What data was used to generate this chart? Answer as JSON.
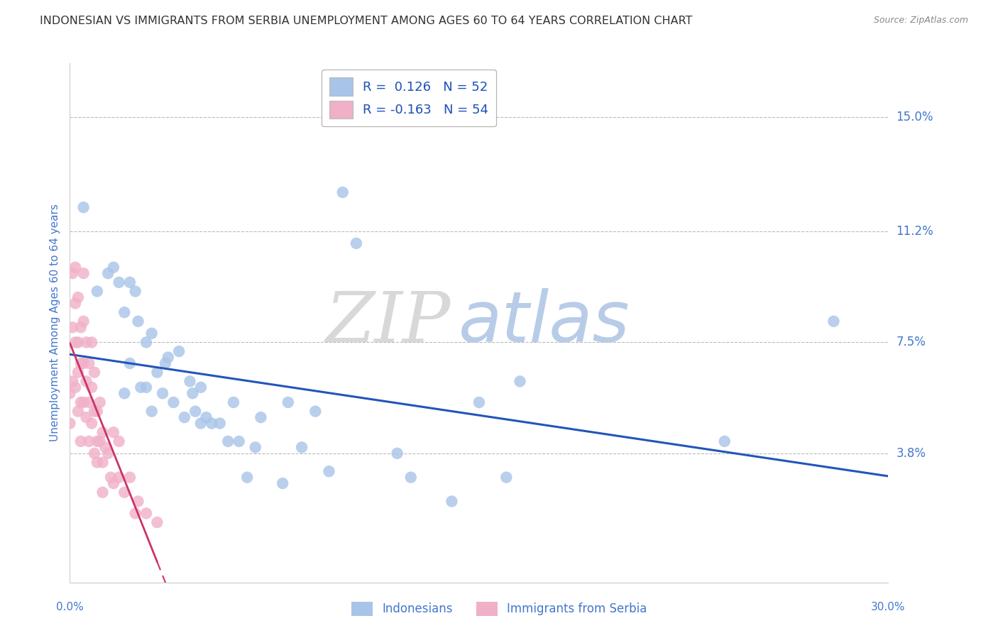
{
  "title": "INDONESIAN VS IMMIGRANTS FROM SERBIA UNEMPLOYMENT AMONG AGES 60 TO 64 YEARS CORRELATION CHART",
  "source": "Source: ZipAtlas.com",
  "ylabel": "Unemployment Among Ages 60 to 64 years",
  "ytick_values": [
    0.038,
    0.075,
    0.112,
    0.15
  ],
  "ytick_labels": [
    "3.8%",
    "7.5%",
    "11.2%",
    "15.0%"
  ],
  "xlim": [
    0.0,
    0.3
  ],
  "ylim": [
    -0.005,
    0.168
  ],
  "r_indonesian": 0.126,
  "n_indonesian": 52,
  "r_serbian": -0.163,
  "n_serbian": 54,
  "color_indonesian": "#a8c4e8",
  "color_serbian": "#f0b0c8",
  "line_color_indonesian": "#2255bb",
  "line_color_serbian": "#cc3366",
  "watermark_ZIP": "ZIP",
  "watermark_atlas": "atlas",
  "watermark_ZIP_color": "#d8d8d8",
  "watermark_atlas_color": "#b8cce8",
  "indonesian_x": [
    0.005,
    0.01,
    0.014,
    0.016,
    0.018,
    0.02,
    0.02,
    0.022,
    0.022,
    0.024,
    0.025,
    0.026,
    0.028,
    0.028,
    0.03,
    0.03,
    0.032,
    0.034,
    0.035,
    0.036,
    0.038,
    0.04,
    0.042,
    0.044,
    0.045,
    0.046,
    0.048,
    0.048,
    0.05,
    0.052,
    0.055,
    0.058,
    0.06,
    0.062,
    0.065,
    0.068,
    0.07,
    0.078,
    0.08,
    0.085,
    0.09,
    0.095,
    0.1,
    0.105,
    0.12,
    0.125,
    0.14,
    0.15,
    0.16,
    0.165,
    0.24,
    0.28
  ],
  "indonesian_y": [
    0.12,
    0.092,
    0.098,
    0.1,
    0.095,
    0.058,
    0.085,
    0.095,
    0.068,
    0.092,
    0.082,
    0.06,
    0.06,
    0.075,
    0.052,
    0.078,
    0.065,
    0.058,
    0.068,
    0.07,
    0.055,
    0.072,
    0.05,
    0.062,
    0.058,
    0.052,
    0.048,
    0.06,
    0.05,
    0.048,
    0.048,
    0.042,
    0.055,
    0.042,
    0.03,
    0.04,
    0.05,
    0.028,
    0.055,
    0.04,
    0.052,
    0.032,
    0.125,
    0.108,
    0.038,
    0.03,
    0.022,
    0.055,
    0.03,
    0.062,
    0.042,
    0.082
  ],
  "serbian_x": [
    0.0,
    0.0,
    0.001,
    0.001,
    0.001,
    0.002,
    0.002,
    0.002,
    0.002,
    0.003,
    0.003,
    0.003,
    0.003,
    0.004,
    0.004,
    0.004,
    0.004,
    0.005,
    0.005,
    0.005,
    0.005,
    0.006,
    0.006,
    0.006,
    0.007,
    0.007,
    0.007,
    0.008,
    0.008,
    0.008,
    0.009,
    0.009,
    0.009,
    0.01,
    0.01,
    0.01,
    0.011,
    0.011,
    0.012,
    0.012,
    0.012,
    0.013,
    0.014,
    0.015,
    0.016,
    0.016,
    0.018,
    0.018,
    0.02,
    0.022,
    0.024,
    0.025,
    0.028,
    0.032
  ],
  "serbian_y": [
    0.058,
    0.048,
    0.098,
    0.08,
    0.062,
    0.1,
    0.088,
    0.075,
    0.06,
    0.09,
    0.075,
    0.065,
    0.052,
    0.08,
    0.068,
    0.055,
    0.042,
    0.098,
    0.082,
    0.068,
    0.055,
    0.075,
    0.062,
    0.05,
    0.068,
    0.055,
    0.042,
    0.075,
    0.06,
    0.048,
    0.065,
    0.052,
    0.038,
    0.052,
    0.042,
    0.035,
    0.055,
    0.042,
    0.045,
    0.035,
    0.025,
    0.04,
    0.038,
    0.03,
    0.045,
    0.028,
    0.042,
    0.03,
    0.025,
    0.03,
    0.018,
    0.022,
    0.018,
    0.015
  ],
  "background_color": "#ffffff",
  "grid_color": "#bbbbbb",
  "title_color": "#333333",
  "axis_label_color": "#4477cc",
  "tick_color": "#4477cc"
}
